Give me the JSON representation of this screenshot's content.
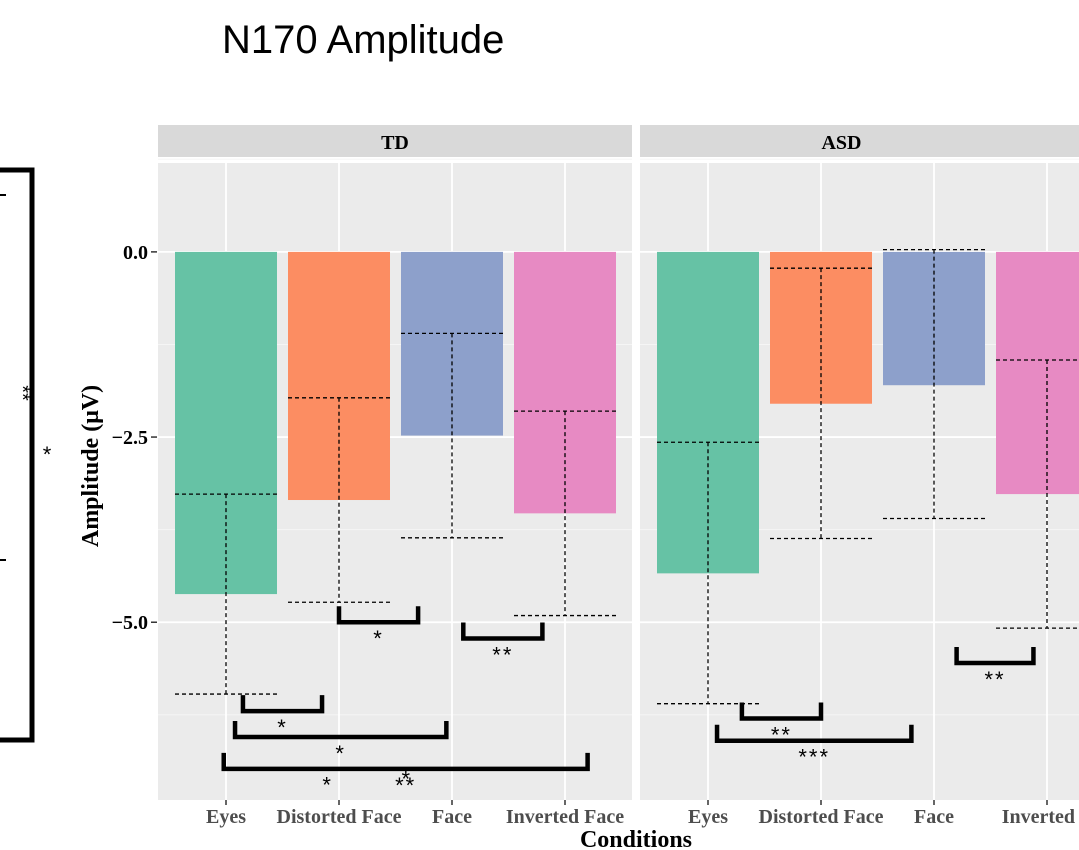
{
  "page_title": "N170 Amplitude",
  "left_fragment": {
    "sig_a": "**",
    "sig_b": "*"
  },
  "chart_data": {
    "type": "bar",
    "title": "N170 Amplitude",
    "xlabel": "Conditions",
    "ylabel": "Amplitude (μV)",
    "yticks": [
      0.0,
      -2.5,
      -5.0
    ],
    "ytick_labels": [
      "0.0",
      "−2.5",
      "−5.0"
    ],
    "ylim": [
      -7.4,
      1.2
    ],
    "categories": [
      "Eyes",
      "Distorted Face",
      "Face",
      "Inverted Face"
    ],
    "category_labels_asd": [
      "Eyes",
      "Distorted Face",
      "Face",
      "Inverted F"
    ],
    "colors": [
      "#66c2a5",
      "#fc8d62",
      "#8da0cb",
      "#e78ac3"
    ],
    "grid": true,
    "panel_background": "#ebebeb",
    "strip_background": "#d9d9d9",
    "panels": [
      {
        "name": "TD",
        "values": [
          -4.62,
          -3.35,
          -2.48,
          -3.53
        ],
        "error_upper": [
          -3.27,
          -1.97,
          -1.1,
          -2.15
        ],
        "error_lower": [
          -5.97,
          -4.73,
          -3.86,
          -4.91
        ],
        "comparisons": [
          {
            "y": -5.0,
            "from": 1.0,
            "to": 1.7,
            "label": "*"
          },
          {
            "y": -5.22,
            "from": 2.1,
            "to": 2.8,
            "label": "**"
          },
          {
            "y": -6.2,
            "from": 0.15,
            "to": 0.85,
            "label": "*"
          },
          {
            "y": -6.55,
            "from": 0.08,
            "to": 1.95,
            "label": "*"
          },
          {
            "y": -6.98,
            "from": -0.02,
            "to": 3.2,
            "label": "**"
          },
          {
            "y": -7.3,
            "from": 0.9,
            "to": 0.9,
            "label": "*",
            "text_only": true
          },
          {
            "y": -7.22,
            "from": 1.6,
            "to": 1.6,
            "label": "*",
            "text_only": true
          }
        ]
      },
      {
        "name": "ASD",
        "values": [
          -4.34,
          -2.05,
          -1.8,
          -3.27
        ],
        "error_upper": [
          -2.57,
          -0.22,
          0.03,
          -1.46
        ],
        "error_lower": [
          -6.1,
          -3.87,
          -3.6,
          -5.08
        ],
        "comparisons": [
          {
            "y": -5.55,
            "from": 2.2,
            "to": 2.88,
            "label": "**"
          },
          {
            "y": -6.3,
            "from": 0.3,
            "to": 1.0,
            "label": "**"
          },
          {
            "y": -6.6,
            "from": 0.08,
            "to": 1.8,
            "label": "***"
          }
        ]
      }
    ]
  }
}
